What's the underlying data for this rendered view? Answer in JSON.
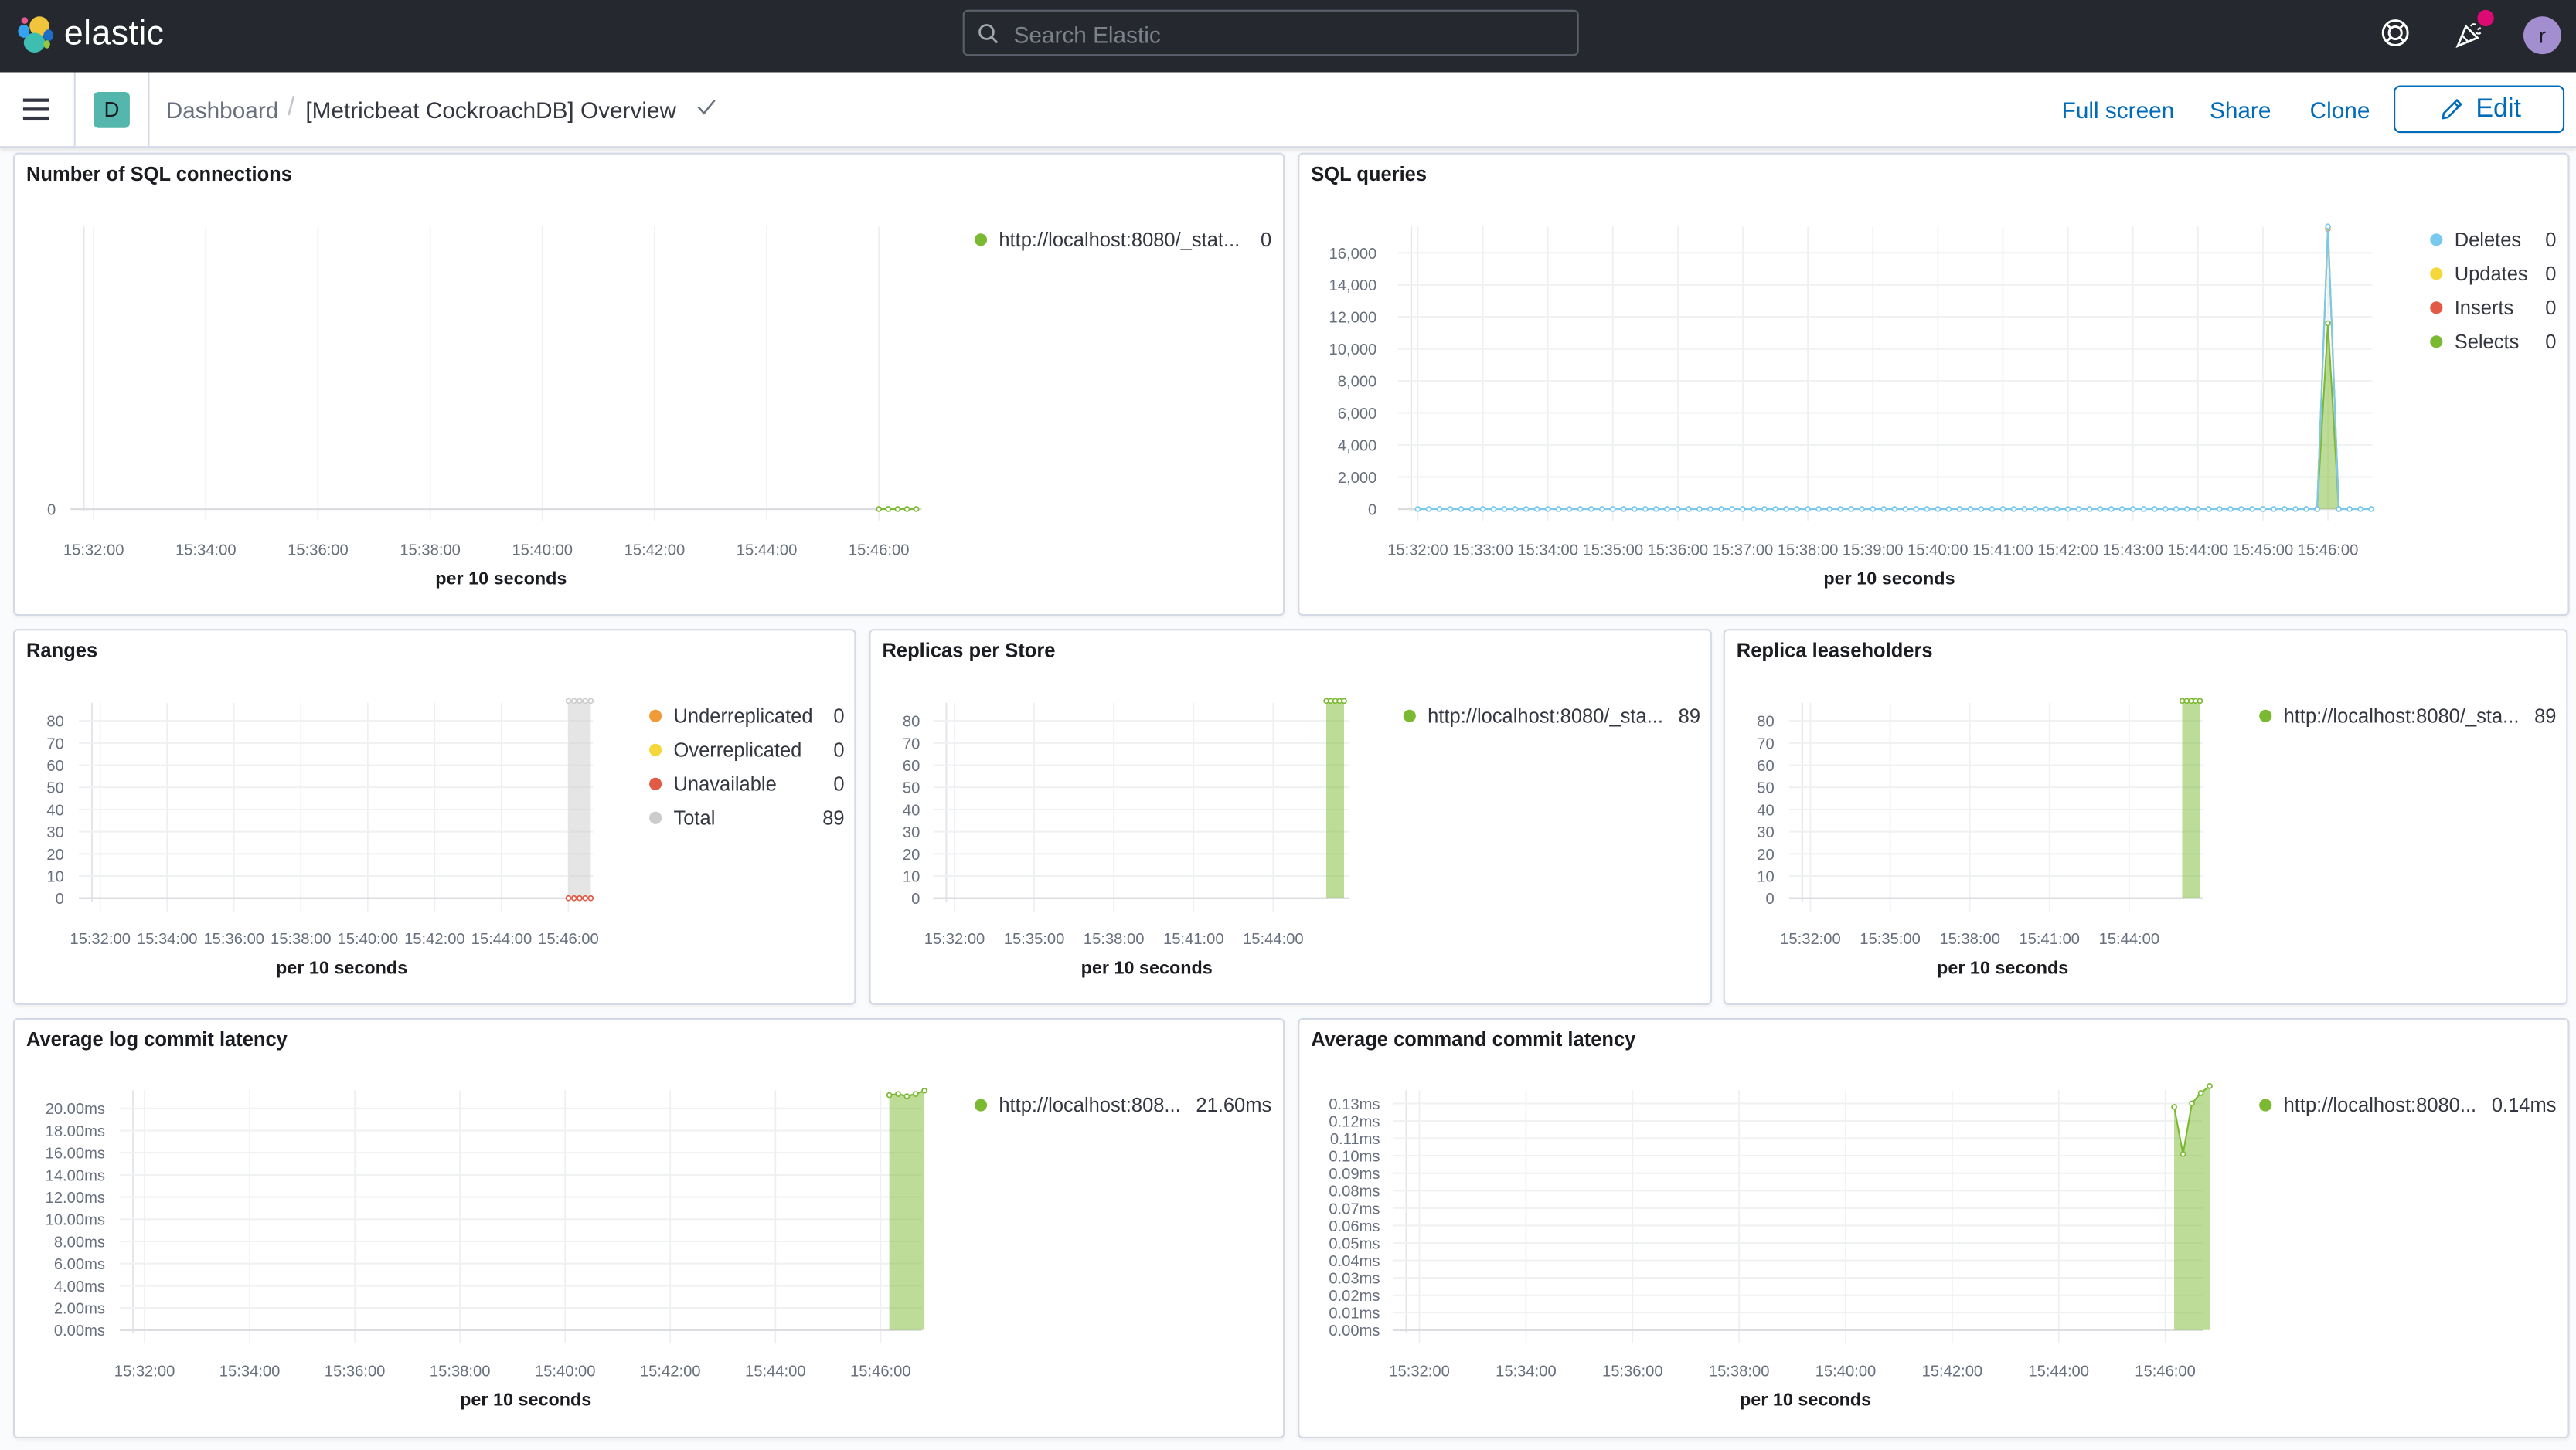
{
  "header": {
    "brand": "elastic",
    "search_placeholder": "Search Elastic",
    "avatar_initial": "r",
    "icons": [
      "elastic-logo",
      "search-icon",
      "help-lifebuoy-icon",
      "news-party-icon",
      "avatar"
    ],
    "news_badge_color": "#dd0a73"
  },
  "subheader": {
    "space_badge": "D",
    "breadcrumb_root": "Dashboard",
    "breadcrumb_separator": "/",
    "breadcrumb_current": "[Metricbeat CockroachDB] Overview",
    "full_screen": "Full screen",
    "share": "Share",
    "clone": "Clone",
    "edit": "Edit"
  },
  "colors": {
    "accent": "#006bb8",
    "green": "#7cb932",
    "blue": "#79c9ef",
    "yellow": "#f5d73b",
    "red": "#e05a45",
    "orange": "#f19a38",
    "grey": "#cccccc"
  },
  "chart_data": [
    {
      "title": "Number of SQL connections",
      "type": "line",
      "xlabel": "per 10 seconds",
      "xticks": [
        "15:32:00",
        "15:34:00",
        "15:36:00",
        "15:38:00",
        "15:40:00",
        "15:42:00",
        "15:44:00",
        "15:46:00"
      ],
      "yticks": [
        "0"
      ],
      "legend": [
        {
          "name": "http://localhost:8080/_stat...",
          "value": "0",
          "color": "#7cb932"
        }
      ],
      "series": [
        {
          "color": "#7cb932",
          "style": "line",
          "x": [
            "15:46:00",
            "15:46:10",
            "15:46:20",
            "15:46:30",
            "15:46:40"
          ],
          "y": [
            0,
            0,
            0,
            0,
            0
          ]
        }
      ]
    },
    {
      "title": "SQL queries",
      "type": "area",
      "xlabel": "per 10 seconds",
      "xticks": [
        "15:32:00",
        "15:33:00",
        "15:34:00",
        "15:35:00",
        "15:36:00",
        "15:37:00",
        "15:38:00",
        "15:39:00",
        "15:40:00",
        "15:41:00",
        "15:42:00",
        "15:43:00",
        "15:44:00",
        "15:45:00",
        "15:46:00"
      ],
      "yticks": [
        "0",
        "2,000",
        "4,000",
        "6,000",
        "8,000",
        "10,000",
        "12,000",
        "14,000",
        "16,000"
      ],
      "legend": [
        {
          "name": "Deletes",
          "value": "0",
          "color": "#79c9ef"
        },
        {
          "name": "Updates",
          "value": "0",
          "color": "#f5d73b"
        },
        {
          "name": "Inserts",
          "value": "0",
          "color": "#e05a45"
        },
        {
          "name": "Selects",
          "value": "0",
          "color": "#7cb932"
        }
      ],
      "series": [
        {
          "color": "#7cb932",
          "style": "area",
          "x": [
            "15:45:50",
            "15:46:00",
            "15:46:10"
          ],
          "y": [
            0,
            11600,
            0
          ]
        },
        {
          "color": "#e05a45",
          "style": "line",
          "x": [
            "15:45:50",
            "15:46:00",
            "15:46:10"
          ],
          "y": [
            0,
            17500,
            0
          ]
        },
        {
          "color": "#f5d73b",
          "style": "line",
          "x": [
            "15:45:50",
            "15:46:00",
            "15:46:10"
          ],
          "y": [
            0,
            17550,
            0
          ]
        },
        {
          "color": "#79c9ef",
          "style": "dots",
          "from": "15:32:00",
          "to": "15:46:40",
          "step_s": 10,
          "default": 0,
          "peaks": {
            "15:46:00": 17650
          }
        }
      ]
    },
    {
      "title": "Ranges",
      "type": "area",
      "xlabel": "per 10 seconds",
      "xticks": [
        "15:32:00",
        "15:34:00",
        "15:36:00",
        "15:38:00",
        "15:40:00",
        "15:42:00",
        "15:44:00",
        "15:46:00"
      ],
      "yticks": [
        "0",
        "10",
        "20",
        "30",
        "40",
        "50",
        "60",
        "70",
        "80"
      ],
      "legend": [
        {
          "name": "Underreplicated",
          "value": "0",
          "color": "#f19a38"
        },
        {
          "name": "Overreplicated",
          "value": "0",
          "color": "#f5d73b"
        },
        {
          "name": "Unavailable",
          "value": "0",
          "color": "#e05a45"
        },
        {
          "name": "Total",
          "value": "89",
          "color": "#cccccc"
        }
      ],
      "series": [
        {
          "color": "#cccccc",
          "style": "area",
          "x": [
            "15:46:00",
            "15:46:10",
            "15:46:20",
            "15:46:30",
            "15:46:40"
          ],
          "y": [
            89,
            89,
            89,
            89,
            89
          ]
        },
        {
          "color": "#e05a45",
          "style": "line",
          "x": [
            "15:46:00",
            "15:46:10",
            "15:46:20",
            "15:46:30",
            "15:46:40"
          ],
          "y": [
            0,
            0,
            0,
            0,
            0
          ]
        }
      ]
    },
    {
      "title": "Replicas per Store",
      "type": "area",
      "xlabel": "per 10 seconds",
      "xticks": [
        "15:32:00",
        "15:35:00",
        "15:38:00",
        "15:41:00",
        "15:44:00"
      ],
      "yticks": [
        "0",
        "10",
        "20",
        "30",
        "40",
        "50",
        "60",
        "70",
        "80"
      ],
      "legend": [
        {
          "name": "http://localhost:8080/_sta...",
          "value": "89",
          "color": "#7cb932"
        }
      ],
      "series": [
        {
          "color": "#7cb932",
          "style": "area",
          "x": [
            "15:46:00",
            "15:46:10",
            "15:46:20",
            "15:46:30",
            "15:46:40"
          ],
          "y": [
            89,
            89,
            89,
            89,
            89
          ]
        }
      ]
    },
    {
      "title": "Replica leaseholders",
      "type": "area",
      "xlabel": "per 10 seconds",
      "xticks": [
        "15:32:00",
        "15:35:00",
        "15:38:00",
        "15:41:00",
        "15:44:00"
      ],
      "yticks": [
        "0",
        "10",
        "20",
        "30",
        "40",
        "50",
        "60",
        "70",
        "80"
      ],
      "legend": [
        {
          "name": "http://localhost:8080/_sta...",
          "value": "89",
          "color": "#7cb932"
        }
      ],
      "series": [
        {
          "color": "#7cb932",
          "style": "area",
          "x": [
            "15:46:00",
            "15:46:10",
            "15:46:20",
            "15:46:30",
            "15:46:40"
          ],
          "y": [
            89,
            89,
            89,
            89,
            89
          ]
        }
      ]
    },
    {
      "title": "Average log commit latency",
      "type": "area",
      "xlabel": "per 10 seconds",
      "xticks": [
        "15:32:00",
        "15:34:00",
        "15:36:00",
        "15:38:00",
        "15:40:00",
        "15:42:00",
        "15:44:00",
        "15:46:00"
      ],
      "yticks": [
        "0.00ms",
        "2.00ms",
        "4.00ms",
        "6.00ms",
        "8.00ms",
        "10.00ms",
        "12.00ms",
        "14.00ms",
        "16.00ms",
        "18.00ms",
        "20.00ms"
      ],
      "legend": [
        {
          "name": "http://localhost:808...",
          "value": "21.60ms",
          "color": "#7cb932"
        }
      ],
      "series": [
        {
          "color": "#7cb932",
          "style": "area",
          "x": [
            "15:46:10",
            "15:46:20",
            "15:46:30",
            "15:46:40",
            "15:46:50"
          ],
          "y": [
            21.2,
            21.3,
            21.1,
            21.3,
            21.6
          ]
        }
      ]
    },
    {
      "title": "Average command commit latency",
      "type": "area",
      "xlabel": "per 10 seconds",
      "xticks": [
        "15:32:00",
        "15:34:00",
        "15:36:00",
        "15:38:00",
        "15:40:00",
        "15:42:00",
        "15:44:00",
        "15:46:00"
      ],
      "yticks": [
        "0.00ms",
        "0.01ms",
        "0.02ms",
        "0.03ms",
        "0.04ms",
        "0.05ms",
        "0.06ms",
        "0.07ms",
        "0.08ms",
        "0.09ms",
        "0.10ms",
        "0.11ms",
        "0.12ms",
        "0.13ms"
      ],
      "legend": [
        {
          "name": "http://localhost:8080...",
          "value": "0.14ms",
          "color": "#7cb932"
        }
      ],
      "series": [
        {
          "color": "#7cb932",
          "style": "area",
          "x": [
            "15:46:10",
            "15:46:20",
            "15:46:30",
            "15:46:40",
            "15:46:50"
          ],
          "y": [
            0.128,
            0.101,
            0.13,
            0.136,
            0.14
          ]
        }
      ]
    }
  ]
}
